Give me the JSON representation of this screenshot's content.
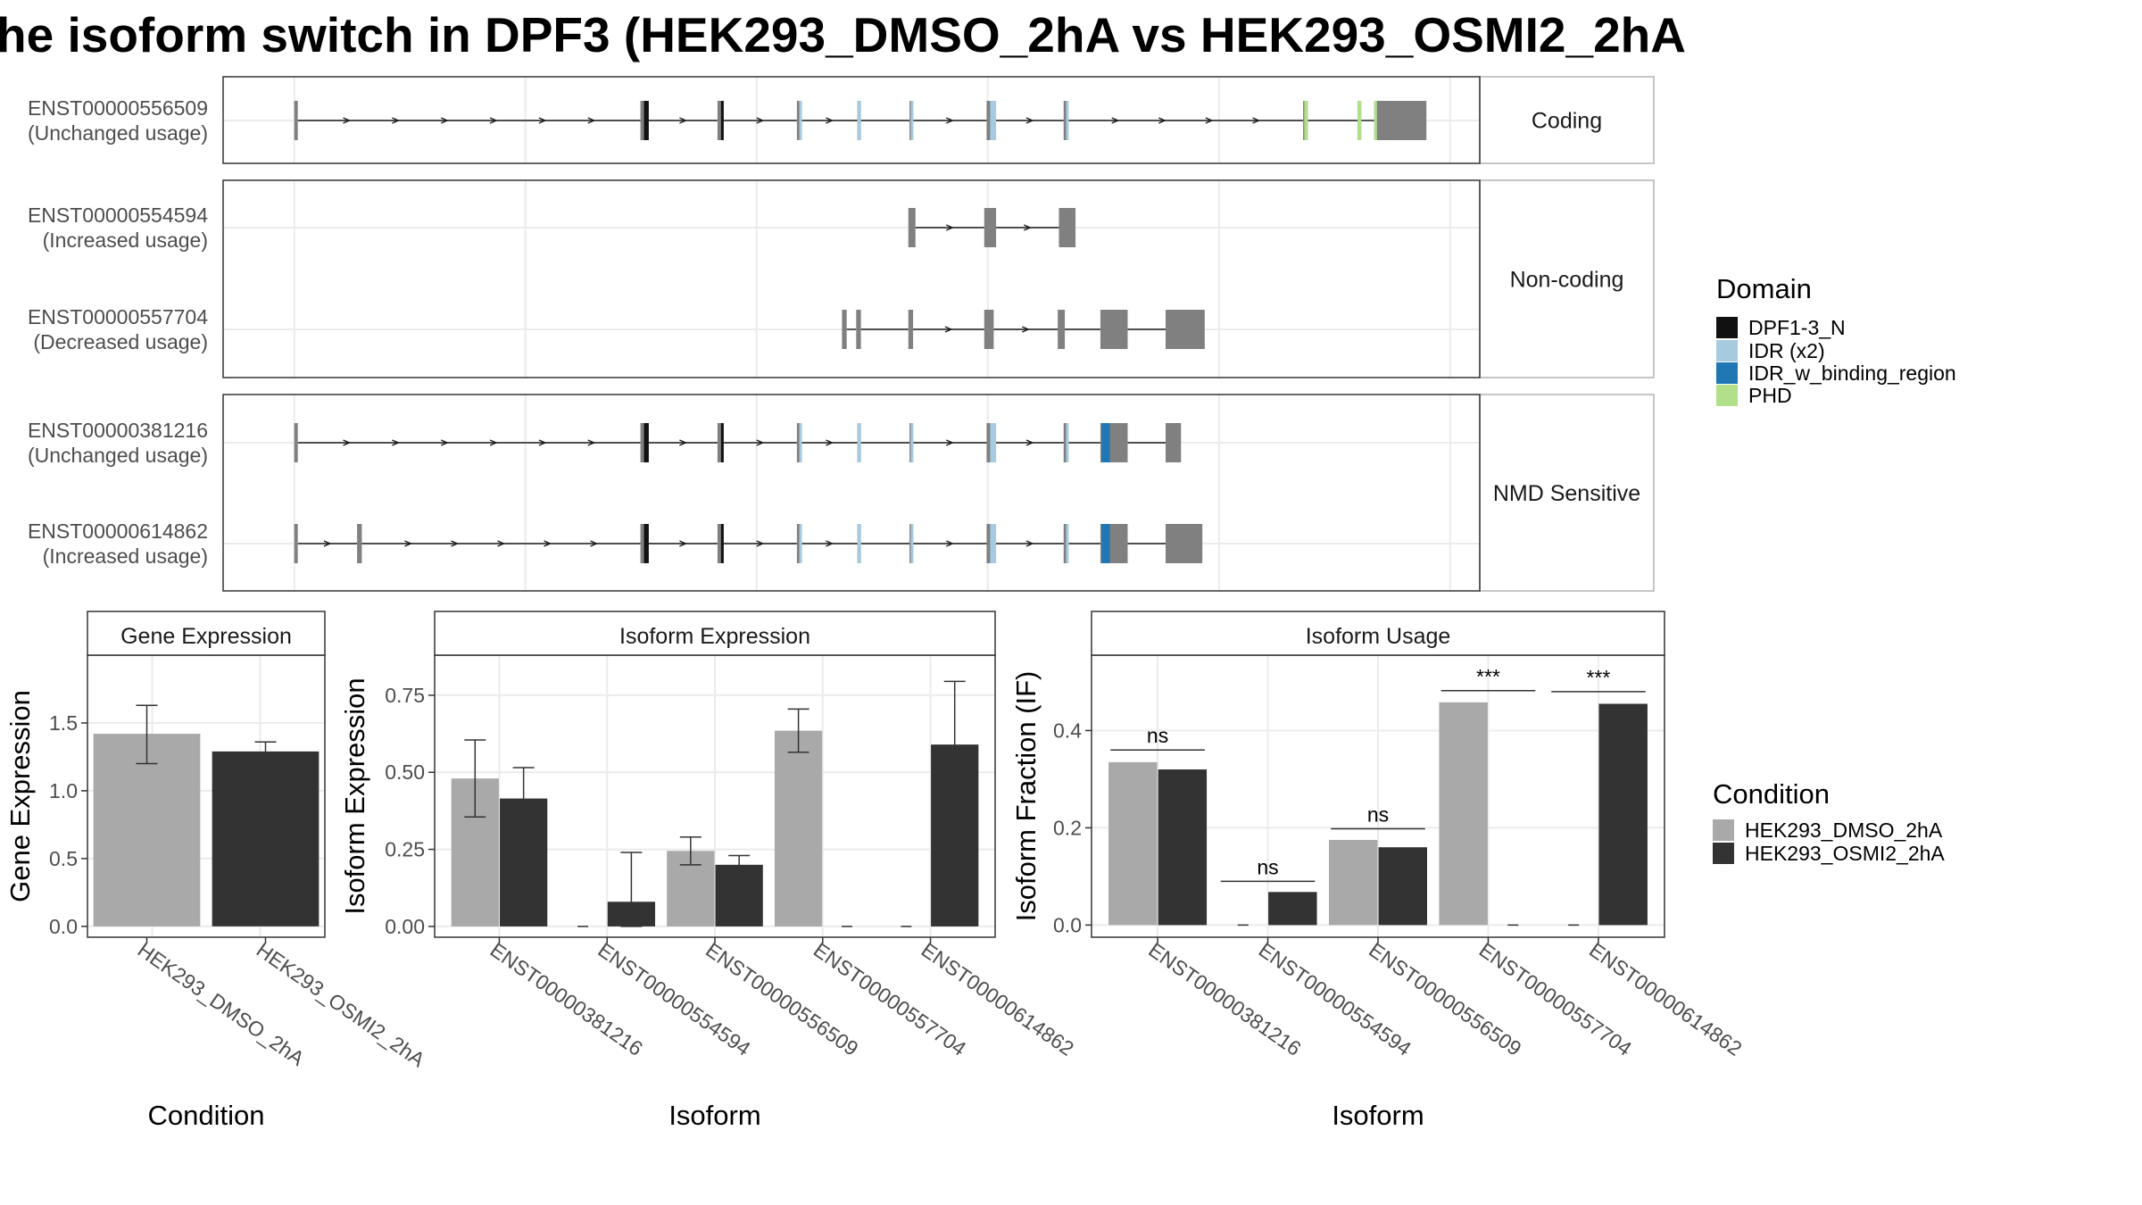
{
  "title": "he isoform switch in DPF3 (HEK293_DMSO_2hA vs HEK293_OSMI2_2hA",
  "colors": {
    "exon": "#808080",
    "DPF1-3_N": "#111111",
    "IDR (x2)": "#a6cbe0",
    "IDR_w_binding_region": "#1f77b4",
    "PHD": "#b2df8a",
    "HEK293_DMSO_2hA": "#a9a9a9",
    "HEK293_OSMI2_2hA": "#333333"
  },
  "chart_data": [
    {
      "type": "gene-structure",
      "groups": [
        {
          "label": "Coding",
          "transcripts": [
            {
              "id": "ENST00000556509",
              "usage": "(Unchanged usage)",
              "exons": [
                [
                  70,
                  73
                ],
                [
                  362,
                  369
                ],
                [
                  427,
                  432
                ],
                [
                  494,
                  498
                ],
                [
                  545,
                  548
                ],
                [
                  589,
                  592
                ],
                [
                  654,
                  662
                ],
                [
                  719,
                  723
                ],
                [
                  921,
                  925
                ],
                [
                  967,
                  970
                ],
                [
                  981,
                  1025
                ]
              ],
              "domains": [
                [
                  365,
                  369,
                  "DPF1-3_N"
                ],
                [
                  430,
                  432,
                  "DPF1-3_N"
                ],
                [
                  496,
                  498,
                  "IDR (x2)"
                ],
                [
                  545,
                  548,
                  "IDR (x2)"
                ],
                [
                  590,
                  592,
                  "IDR (x2)"
                ],
                [
                  657,
                  662,
                  "IDR (x2)"
                ],
                [
                  721,
                  723,
                  "IDR (x2)"
                ],
                [
                  922,
                  925,
                  "PHD"
                ],
                [
                  967,
                  970,
                  "PHD"
                ],
                [
                  981,
                  983,
                  "PHD"
                ]
              ]
            }
          ]
        },
        {
          "label": "Non-coding",
          "transcripts": [
            {
              "id": "ENST00000554594",
              "usage": "(Increased usage)",
              "exons": [
                [
                  588,
                  594
                ],
                [
                  652,
                  662
                ],
                [
                  715,
                  729
                ]
              ],
              "domains": []
            },
            {
              "id": "ENST00000557704",
              "usage": "(Decreased usage)",
              "exons": [
                [
                  532,
                  536
                ],
                [
                  544,
                  548
                ],
                [
                  588,
                  592
                ],
                [
                  652,
                  660
                ],
                [
                  714,
                  720
                ],
                [
                  750,
                  773
                ],
                [
                  805,
                  838
                ]
              ],
              "domains": []
            }
          ]
        },
        {
          "label": "NMD Sensitive",
          "transcripts": [
            {
              "id": "ENST00000381216",
              "usage": "(Unchanged usage)",
              "exons": [
                [
                  70,
                  73
                ],
                [
                  362,
                  369
                ],
                [
                  427,
                  432
                ],
                [
                  494,
                  498
                ],
                [
                  545,
                  548
                ],
                [
                  589,
                  592
                ],
                [
                  654,
                  662
                ],
                [
                  719,
                  723
                ],
                [
                  750,
                  773
                ],
                [
                  805,
                  818
                ]
              ],
              "domains": [
                [
                  365,
                  369,
                  "DPF1-3_N"
                ],
                [
                  430,
                  432,
                  "DPF1-3_N"
                ],
                [
                  496,
                  498,
                  "IDR (x2)"
                ],
                [
                  545,
                  548,
                  "IDR (x2)"
                ],
                [
                  590,
                  592,
                  "IDR (x2)"
                ],
                [
                  657,
                  662,
                  "IDR (x2)"
                ],
                [
                  721,
                  723,
                  "IDR (x2)"
                ],
                [
                  751,
                  758,
                  "IDR_w_binding_region"
                ]
              ]
            },
            {
              "id": "ENST00000614862",
              "usage": "(Increased usage)",
              "exons": [
                [
                  70,
                  73
                ],
                [
                  123,
                  127
                ],
                [
                  362,
                  369
                ],
                [
                  427,
                  432
                ],
                [
                  494,
                  498
                ],
                [
                  545,
                  548
                ],
                [
                  589,
                  592
                ],
                [
                  654,
                  662
                ],
                [
                  719,
                  723
                ],
                [
                  750,
                  773
                ],
                [
                  805,
                  836
                ]
              ],
              "domains": [
                [
                  365,
                  369,
                  "DPF1-3_N"
                ],
                [
                  430,
                  432,
                  "DPF1-3_N"
                ],
                [
                  496,
                  498,
                  "IDR (x2)"
                ],
                [
                  545,
                  548,
                  "IDR (x2)"
                ],
                [
                  590,
                  592,
                  "IDR (x2)"
                ],
                [
                  657,
                  662,
                  "IDR (x2)"
                ],
                [
                  721,
                  723,
                  "IDR (x2)"
                ],
                [
                  751,
                  758,
                  "IDR_w_binding_region"
                ]
              ]
            }
          ]
        }
      ],
      "legend": {
        "title": "Domain",
        "entries": [
          "DPF1-3_N",
          "IDR (x2)",
          "IDR_w_binding_region",
          "PHD"
        ]
      }
    },
    {
      "type": "bar",
      "title": "Gene Expression",
      "xlabel": "Condition",
      "ylabel": "Gene Expression",
      "categories": [
        "HEK293_DMSO_2hA",
        "HEK293_OSMI2_2hA"
      ],
      "values": [
        1.42,
        1.29
      ],
      "errors": [
        [
          1.2,
          1.63
        ],
        [
          1.22,
          1.36
        ]
      ],
      "ylim": [
        -0.08,
        2.0
      ],
      "yticks": [
        "0.0",
        "0.5",
        "1.0",
        "1.5"
      ]
    },
    {
      "type": "bar",
      "title": "Isoform Expression",
      "xlabel": "Isoform",
      "ylabel": "Isoform Expression",
      "categories": [
        "ENST00000381216",
        "ENST00000554594",
        "ENST00000556509",
        "ENST00000557704",
        "ENST00000614862"
      ],
      "series": [
        {
          "name": "HEK293_DMSO_2hA",
          "values": [
            0.48,
            0.0,
            0.245,
            0.635,
            0.0
          ],
          "errors": [
            [
              0.355,
              0.605
            ],
            [
              0.0,
              0.0
            ],
            [
              0.2,
              0.29
            ],
            [
              0.565,
              0.705
            ],
            [
              0.0,
              0.0
            ]
          ]
        },
        {
          "name": "HEK293_OSMI2_2hA",
          "values": [
            0.415,
            0.08,
            0.2,
            0.0,
            0.59
          ],
          "errors": [
            [
              0.32,
              0.515
            ],
            [
              0.0,
              0.24
            ],
            [
              0.17,
              0.23
            ],
            [
              0.0,
              0.0
            ],
            [
              0.385,
              0.795
            ]
          ]
        }
      ],
      "ylim": [
        -0.035,
        0.88
      ],
      "yticks": [
        "0.00",
        "0.25",
        "0.50",
        "0.75"
      ]
    },
    {
      "type": "bar",
      "title": "Isoform Usage",
      "xlabel": "Isoform",
      "ylabel": "Isoform Fraction (IF)",
      "categories": [
        "ENST00000381216",
        "ENST00000554594",
        "ENST00000556509",
        "ENST00000557704",
        "ENST00000614862"
      ],
      "series": [
        {
          "name": "HEK293_DMSO_2hA",
          "values": [
            0.335,
            0.0,
            0.175,
            0.458,
            0.0
          ]
        },
        {
          "name": "HEK293_OSMI2_2hA",
          "values": [
            0.32,
            0.068,
            0.16,
            0.0,
            0.455
          ]
        }
      ],
      "significance": [
        {
          "label": "ns",
          "y": 0.36
        },
        {
          "label": "ns",
          "y": 0.09
        },
        {
          "label": "ns",
          "y": 0.198
        },
        {
          "label": "***",
          "y": 0.482
        },
        {
          "label": "***",
          "y": 0.48
        }
      ],
      "ylim": [
        -0.025,
        0.555
      ],
      "yticks": [
        "0.0",
        "0.2",
        "0.4"
      ]
    }
  ],
  "condition_legend": {
    "title": "Condition",
    "entries": [
      "HEK293_DMSO_2hA",
      "HEK293_OSMI2_2hA"
    ]
  }
}
